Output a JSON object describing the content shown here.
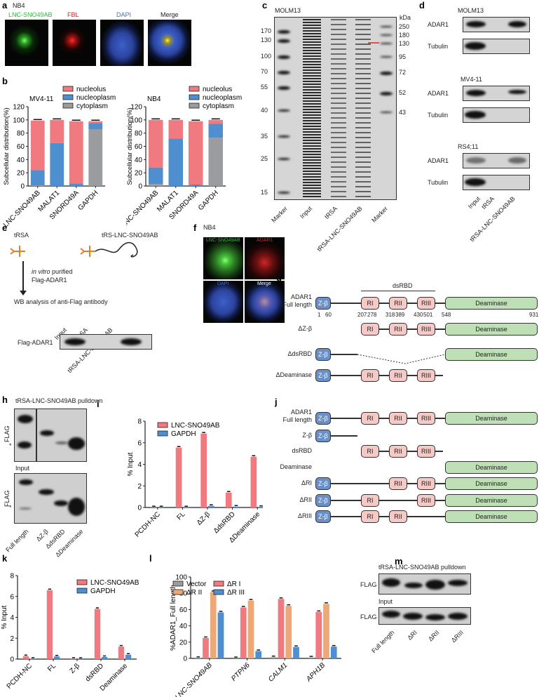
{
  "panels": {
    "a": {
      "label": "a",
      "cell_line": "NB4",
      "channels": [
        "LNC-SNO49AB",
        "FBL",
        "DAPI",
        "Merge"
      ],
      "channel_colors": [
        "#2bbf3a",
        "#e02020",
        "#3a6fd8",
        "#222222"
      ]
    },
    "b": {
      "label": "b"
    },
    "c": {
      "label": "c",
      "cell_line": "MOLM13",
      "unit": "kDa",
      "left_markers": [
        "170",
        "130",
        "100",
        "70",
        "55",
        "40",
        "35",
        "25",
        "15"
      ],
      "right_markers": [
        "250",
        "180",
        "130",
        "95",
        "72",
        "52",
        "43"
      ],
      "lanes": [
        "Marker",
        "Input",
        "tRSA",
        "tRSA-LNC-SNO49AB",
        "Marker"
      ],
      "arrow_color": "#d9534f"
    },
    "d": {
      "label": "d",
      "blocks": [
        {
          "cell_line": "MOLM13",
          "rows": [
            "ADAR1",
            "Tubulin"
          ]
        },
        {
          "cell_line": "MV4-11",
          "rows": [
            "ADAR1",
            "Tubulin"
          ]
        },
        {
          "cell_line": "RS4;11",
          "rows": [
            "ADAR1",
            "Tubulin"
          ]
        }
      ],
      "lanes": [
        "Input",
        "tRSA",
        "tRSA-LNC-SNO49AB"
      ]
    },
    "e": {
      "label": "e",
      "rna1": "tRSA",
      "rna2": "tRS-LNC-SNO49AB",
      "step1_italic": "in vitro",
      "step1_rest": " purified",
      "step1_line2": "Flag-ADAR1",
      "step2": "WB analysis of anti-Flag antibody",
      "lanes": [
        "Input",
        "tRSA",
        "tRSA-LNC-SNO49AB"
      ],
      "row": "Flag-ADAR1"
    },
    "f": {
      "label": "f",
      "cell_line": "NB4",
      "channels": [
        "LNC-SNO49AB",
        "ADAR1",
        "DAPI",
        "Merge"
      ]
    },
    "g": {
      "label": "g",
      "group": "dsRBD",
      "rows": [
        {
          "label": "ADAR1",
          "label2": "Full length",
          "domains": [
            "Z-β",
            "RI",
            "RII",
            "RIII",
            "Deaminase"
          ]
        },
        {
          "label": "ΔZ-β",
          "domains": [
            "RI",
            "RII",
            "RIII",
            "Deaminase"
          ]
        },
        {
          "label": "ΔdsRBD",
          "domains": [
            "Z-β",
            "Deaminase"
          ]
        },
        {
          "label": "ΔDeaminase",
          "domains": [
            "Z-β",
            "RI",
            "RII",
            "RIII"
          ]
        }
      ],
      "positions": [
        "1",
        "60",
        "207",
        "278",
        "318",
        "389",
        "430",
        "501",
        "548",
        "931"
      ]
    },
    "h": {
      "label": "h",
      "title": "tRSA-LNC-SNO49AB pulldown",
      "input": "Input",
      "row": "FLAG",
      "asterisk": "*",
      "lanes": [
        "Full length",
        "ΔZ-β",
        "ΔdsRBD",
        "ΔDeaminase"
      ]
    },
    "i": {
      "label": "i"
    },
    "j": {
      "label": "j",
      "rows": [
        {
          "label": "ADAR1",
          "label2": "Full length",
          "domains": [
            "Z-β",
            "RI",
            "RII",
            "RIII",
            "Deaminase"
          ]
        },
        {
          "label": "Z-β",
          "domains": [
            "Z-β"
          ]
        },
        {
          "label": "dsRBD",
          "domains": [
            "RI",
            "RII",
            "RIII"
          ]
        },
        {
          "label": "Deaminase",
          "domains": [
            "Deaminase"
          ]
        },
        {
          "label": "ΔRI",
          "domains": [
            "Z-β",
            "RII",
            "RIII",
            "Deaminase"
          ]
        },
        {
          "label": "ΔRII",
          "domains": [
            "Z-β",
            "RI",
            "RIII",
            "Deaminase"
          ]
        },
        {
          "label": "ΔRIII",
          "domains": [
            "Z-β",
            "RI",
            "RII",
            "Deaminase"
          ]
        }
      ]
    },
    "k": {
      "label": "k"
    },
    "l": {
      "label": "l"
    },
    "m": {
      "label": "m",
      "title": "tRSA-LNC-SNO49AB pulldown",
      "input": "Input",
      "row": "FLAG",
      "lanes": [
        "Full length",
        "ΔRI",
        "ΔRII",
        "ΔRIII"
      ]
    }
  },
  "chart_data": [
    {
      "id": "b1",
      "type": "stacked-bar",
      "title": "MV4-11",
      "ylabel": "Subcellular distribution(%)",
      "ylim": [
        0,
        120
      ],
      "yticks": [
        0,
        20,
        40,
        60,
        80,
        100,
        120
      ],
      "categories": [
        "LNC-SNO49AB",
        "MALAT1",
        "SNORD49A",
        "GAPDH"
      ],
      "legend": "top-right",
      "series": [
        {
          "name": "cytoplasm",
          "color": "#9a9ca0",
          "values": [
            1,
            0,
            0,
            86
          ]
        },
        {
          "name": "nucleoplasm",
          "color": "#4f8fd0",
          "values": [
            23,
            65,
            4,
            9
          ]
        },
        {
          "name": "nucleolus",
          "color": "#f07a7f",
          "values": [
            75,
            35,
            94,
            3
          ]
        }
      ]
    },
    {
      "id": "b2",
      "type": "stacked-bar",
      "title": "NB4",
      "ylabel": "Subcellular distribution(%)",
      "ylim": [
        0,
        120
      ],
      "yticks": [
        0,
        20,
        40,
        60,
        80,
        100,
        120
      ],
      "categories": [
        "LNC-SNO49AB",
        "MALAT1",
        "SNORD49A",
        "GAPDH"
      ],
      "legend": "top-right",
      "series": [
        {
          "name": "cytoplasm",
          "color": "#9a9ca0",
          "values": [
            3,
            0,
            0,
            73
          ]
        },
        {
          "name": "nucleoplasm",
          "color": "#4f8fd0",
          "values": [
            25,
            72,
            2,
            21
          ]
        },
        {
          "name": "nucleolus",
          "color": "#f07a7f",
          "values": [
            72,
            28,
            96,
            6
          ]
        }
      ]
    },
    {
      "id": "i",
      "type": "bar",
      "ylabel": "% Input",
      "ylim": [
        0,
        8
      ],
      "yticks": [
        0,
        2,
        4,
        6,
        8
      ],
      "legend": "top-left",
      "categories": [
        "PCDH-NC",
        "FL",
        "ΔZ-β",
        "ΔdsRBD",
        "ΔDeaminase"
      ],
      "series": [
        {
          "name": "LNC-SNO49AB",
          "color": "#f07a7f",
          "values": [
            0.02,
            5.55,
            6.85,
            1.38,
            4.7
          ]
        },
        {
          "name": "GAPDH",
          "color": "#4f8fd0",
          "values": [
            0.02,
            0.02,
            0.15,
            0.08,
            0.05
          ]
        }
      ]
    },
    {
      "id": "k",
      "type": "bar",
      "ylabel": "% Input",
      "ylim": [
        0,
        8
      ],
      "yticks": [
        0,
        2,
        4,
        6,
        8
      ],
      "legend": "top-right",
      "categories": [
        "PCDH-NC",
        "FL",
        "Z-β",
        "dsRBD",
        "Deaminase"
      ],
      "series": [
        {
          "name": "LNC-SNO49AB",
          "color": "#f07a7f",
          "values": [
            0.28,
            6.6,
            0.03,
            4.8,
            1.2
          ]
        },
        {
          "name": "GAPDH",
          "color": "#4f8fd0",
          "values": [
            0.03,
            0.25,
            0.02,
            0.2,
            0.42
          ]
        }
      ]
    },
    {
      "id": "l",
      "type": "bar",
      "ylabel": "%ADAR1_Full length",
      "ylim": [
        0,
        100
      ],
      "yticks": [
        0,
        20,
        40,
        60,
        80,
        100
      ],
      "legend": "top-left",
      "italic_categories": true,
      "categories": [
        "LNC-SNO49AB",
        "PTPN6",
        "CALM1",
        "APH1B"
      ],
      "series": [
        {
          "name": "Vector",
          "color": "#9a9ca0",
          "values": [
            0.5,
            0.3,
            1.5,
            1.2
          ]
        },
        {
          "name": "ΔR I",
          "color": "#f07a7f",
          "values": [
            25,
            62.5,
            73,
            57
          ]
        },
        {
          "name": "ΔR II",
          "color": "#eda877",
          "values": [
            81.5,
            71,
            64.5,
            67
          ]
        },
        {
          "name": "ΔR III",
          "color": "#4f8fd0",
          "values": [
            56.5,
            9,
            14,
            14.5
          ]
        }
      ]
    }
  ]
}
